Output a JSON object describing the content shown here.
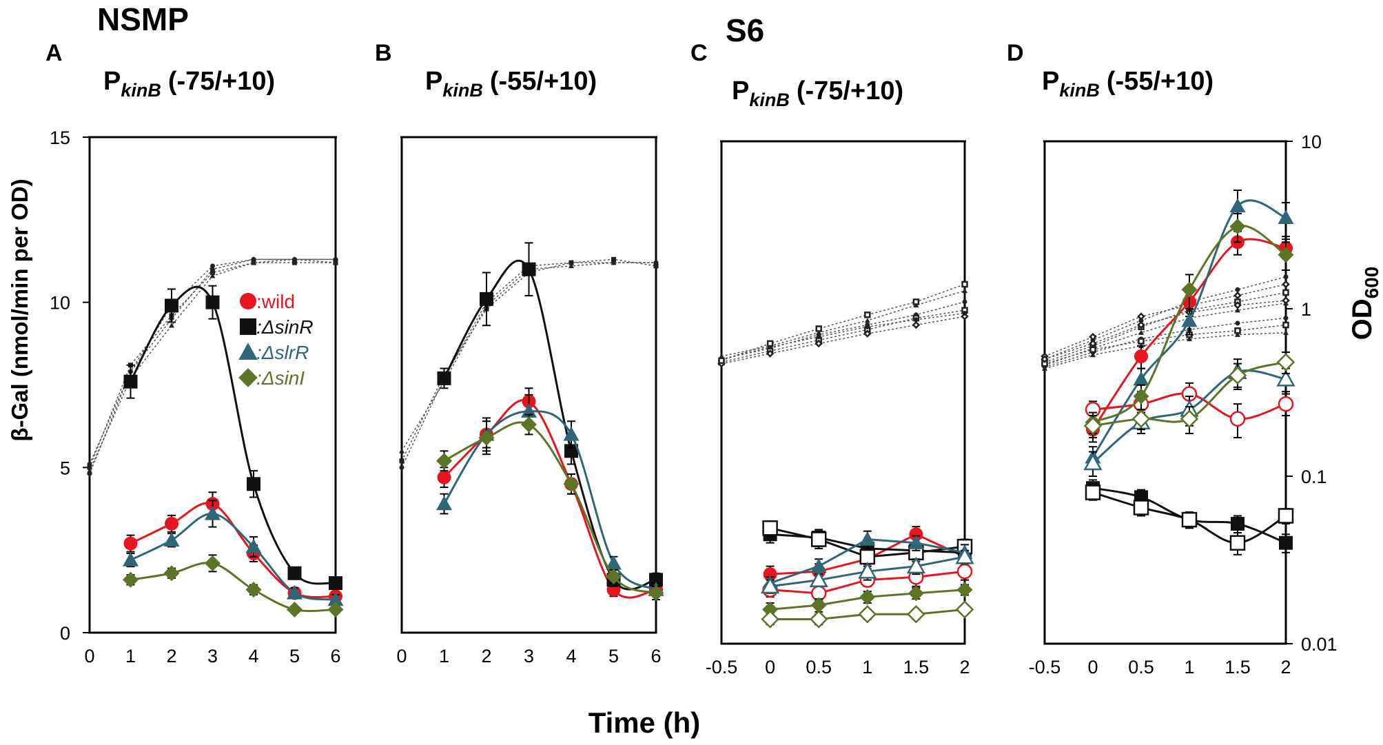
{
  "figure": {
    "group_left": "NSMP",
    "group_right": "S6",
    "y_label_left_prefix": "β-Gal",
    "y_label_left": "(nmol/min per OD)",
    "y_label_right_main": "OD",
    "y_label_right_sub": "600",
    "x_label": "Time (h)"
  },
  "colors": {
    "wild": "#e8141e",
    "sinR": "#111111",
    "slrR": "#2e6678",
    "sinI": "#5c7425",
    "od": "#555555"
  },
  "chart_data": [
    {
      "panel": "A",
      "type": "line",
      "group": "NSMP",
      "title_main": "P",
      "title_sub": "kinB",
      "title_rest": "(-75/+10)",
      "x": [
        0,
        1,
        2,
        3,
        4,
        5,
        6
      ],
      "x_tick_labels": [
        "0",
        "1",
        "2",
        "3",
        "4",
        "5",
        "6"
      ],
      "xlim": [
        0,
        6
      ],
      "ylim": [
        0,
        15
      ],
      "y_tick_labels": [
        "0",
        "5",
        "10",
        "15"
      ],
      "legend": [
        {
          "marker": "circle",
          "label": ":wild",
          "series": "wild"
        },
        {
          "marker": "square",
          "label": ":ΔsinR",
          "series": "sinR"
        },
        {
          "marker": "triangle",
          "label": ":ΔslrR",
          "series": "slrR"
        },
        {
          "marker": "diamond",
          "label": ":ΔsinI",
          "series": "sinI"
        }
      ],
      "series": [
        {
          "name": "wild",
          "marker": "circle",
          "filled": true,
          "values": [
            null,
            2.7,
            3.3,
            3.9,
            2.4,
            1.2,
            1.1
          ],
          "err": [
            0,
            0.25,
            0.25,
            0.35,
            0.25,
            0.15,
            0.15
          ]
        },
        {
          "name": "ΔsinR",
          "marker": "square",
          "filled": true,
          "values": [
            null,
            7.6,
            9.9,
            10.0,
            4.5,
            1.8,
            1.5
          ],
          "err": [
            0,
            0.5,
            0.5,
            0.5,
            0.4,
            0.15,
            0.15
          ]
        },
        {
          "name": "ΔslrR",
          "marker": "triangle",
          "filled": true,
          "values": [
            null,
            2.2,
            2.8,
            3.6,
            2.6,
            1.2,
            1.0
          ],
          "err": [
            0,
            0.2,
            0.2,
            0.4,
            0.3,
            0.15,
            0.15
          ]
        },
        {
          "name": "ΔsinI",
          "marker": "diamond",
          "filled": true,
          "values": [
            null,
            1.6,
            1.8,
            2.1,
            1.3,
            0.7,
            0.7
          ],
          "err": [
            0,
            0.15,
            0.15,
            0.25,
            0.15,
            0.1,
            0.1
          ]
        }
      ],
      "od_curves": [
        [
          5.1,
          7.9,
          9.9,
          11.1,
          11.3,
          11.3,
          11.3
        ],
        [
          5.0,
          8.1,
          9.6,
          10.9,
          11.2,
          11.2,
          11.2
        ],
        [
          4.9,
          7.7,
          9.3,
          10.8,
          11.2,
          11.3,
          11.2
        ],
        [
          4.8,
          7.9,
          9.5,
          11.0,
          11.3,
          11.3,
          11.3
        ]
      ]
    },
    {
      "panel": "B",
      "type": "line",
      "group": "NSMP",
      "title_main": "P",
      "title_sub": "kinB",
      "title_rest": "(-55/+10)",
      "x": [
        0,
        1,
        2,
        3,
        4,
        5,
        6
      ],
      "x_tick_labels": [
        "0",
        "1",
        "2",
        "3",
        "4",
        "5",
        "6"
      ],
      "xlim": [
        0,
        6
      ],
      "ylim": [
        0,
        15
      ],
      "series": [
        {
          "name": "wild",
          "marker": "circle",
          "filled": true,
          "values": [
            null,
            4.7,
            6.0,
            7.0,
            4.5,
            1.3,
            1.3
          ],
          "err": [
            0,
            0.3,
            0.4,
            0.4,
            0.3,
            0.2,
            0.2
          ]
        },
        {
          "name": "ΔsinR",
          "marker": "square",
          "filled": true,
          "values": [
            null,
            7.7,
            10.1,
            11.0,
            5.5,
            1.6,
            1.6
          ],
          "err": [
            0,
            0.3,
            0.8,
            0.8,
            0.4,
            0.2,
            0.2
          ]
        },
        {
          "name": "ΔslrR",
          "marker": "triangle",
          "filled": true,
          "values": [
            null,
            3.9,
            6.0,
            6.7,
            6.0,
            2.1,
            1.3
          ],
          "err": [
            0,
            0.3,
            0.5,
            0.5,
            0.4,
            0.2,
            0.2
          ]
        },
        {
          "name": "ΔsinI",
          "marker": "diamond",
          "filled": true,
          "values": [
            null,
            5.2,
            5.9,
            6.3,
            4.5,
            1.7,
            1.2
          ],
          "err": [
            0,
            0.3,
            0.5,
            0.3,
            0.3,
            0.2,
            0.2
          ]
        }
      ],
      "od_curves": [
        [
          5.0,
          7.7,
          10.0,
          11.1,
          11.2,
          11.2,
          11.2
        ],
        [
          5.2,
          7.8,
          9.8,
          10.9,
          11.2,
          11.3,
          11.1
        ],
        [
          5.5,
          7.6,
          9.9,
          11.0,
          11.1,
          11.2,
          11.2
        ]
      ]
    },
    {
      "panel": "C",
      "type": "line",
      "group": "S6",
      "title_main": "P",
      "title_sub": "kinB",
      "title_rest": "(-75/+10)",
      "x": [
        -0.5,
        0,
        0.5,
        1,
        1.5,
        2
      ],
      "x_tick_labels": [
        "-0.5",
        "0",
        "0.5",
        "1",
        "1.5",
        "2"
      ],
      "xlim": [
        -0.5,
        2
      ],
      "ylim_log": [
        0.01,
        10
      ],
      "series": [
        {
          "name": "wild",
          "marker": "circle",
          "filled": true,
          "values": [
            null,
            0.026,
            0.027,
            0.032,
            0.045,
            0.033
          ],
          "err": [
            0,
            0.003,
            0.003,
            0.004,
            0.005,
            0.003
          ]
        },
        {
          "name": "wild (open)",
          "marker": "circle",
          "filled": false,
          "values": [
            null,
            0.021,
            0.02,
            0.024,
            0.025,
            0.027
          ],
          "err": [
            0,
            0.002,
            0.002,
            0.002,
            0.003,
            0.003
          ]
        },
        {
          "name": "ΔsinR",
          "marker": "square",
          "filled": true,
          "values": [
            null,
            0.045,
            0.043,
            0.037,
            0.036,
            0.035
          ],
          "err": [
            0,
            0.005,
            0.005,
            0.004,
            0.004,
            0.004
          ]
        },
        {
          "name": "ΔsinR (open)",
          "marker": "square",
          "filled": false,
          "values": [
            null,
            0.049,
            0.042,
            0.033,
            0.035,
            0.038
          ],
          "err": [
            0,
            0.005,
            0.005,
            0.004,
            0.004,
            0.004
          ]
        },
        {
          "name": "ΔslrR",
          "marker": "triangle",
          "filled": true,
          "values": [
            null,
            0.023,
            0.029,
            0.042,
            0.04,
            0.035
          ],
          "err": [
            0,
            0.002,
            0.003,
            0.005,
            0.004,
            0.004
          ]
        },
        {
          "name": "ΔslrR (open)",
          "marker": "triangle",
          "filled": false,
          "values": [
            null,
            0.022,
            0.024,
            0.027,
            0.029,
            0.033
          ],
          "err": [
            0,
            0.002,
            0.002,
            0.003,
            0.003,
            0.003
          ]
        },
        {
          "name": "ΔsinI",
          "marker": "diamond",
          "filled": true,
          "values": [
            null,
            0.016,
            0.017,
            0.019,
            0.02,
            0.021
          ],
          "err": [
            0,
            0.0015,
            0.0015,
            0.0015,
            0.0015,
            0.0015
          ]
        },
        {
          "name": "ΔsinI (open)",
          "marker": "diamond",
          "filled": false,
          "values": [
            null,
            0.014,
            0.014,
            0.015,
            0.015,
            0.016
          ],
          "err": [
            0,
            0.001,
            0.001,
            0.001,
            0.001,
            0.001
          ]
        }
      ],
      "od_curves": [
        [
          0.5,
          0.58,
          0.7,
          0.8,
          0.92,
          1.1
        ],
        [
          0.48,
          0.56,
          0.65,
          0.75,
          0.88,
          0.98
        ],
        [
          0.52,
          0.6,
          0.72,
          0.85,
          1.05,
          1.28
        ],
        [
          0.47,
          0.54,
          0.62,
          0.71,
          0.8,
          0.9
        ],
        [
          0.5,
          0.59,
          0.68,
          0.78,
          0.86,
          0.94
        ],
        [
          0.49,
          0.62,
          0.76,
          0.92,
          1.1,
          1.4
        ]
      ]
    },
    {
      "panel": "D",
      "type": "line",
      "group": "S6",
      "title_main": "P",
      "title_sub": "kinB",
      "title_rest": "(-55/+10)",
      "x": [
        -0.5,
        0,
        0.5,
        1,
        1.5,
        2
      ],
      "x_tick_labels": [
        "-0.5",
        "0",
        "0.5",
        "1",
        "1.5",
        "2"
      ],
      "xlim": [
        -0.5,
        2
      ],
      "ylim_log": [
        0.01,
        10
      ],
      "y_tick_labels_right": [
        "0.01",
        "0.1",
        "1",
        "10"
      ],
      "series": [
        {
          "name": "wild",
          "marker": "circle",
          "filled": true,
          "values": [
            null,
            0.19,
            0.52,
            1.1,
            2.5,
            2.3
          ],
          "err": [
            0,
            0.03,
            0.08,
            0.2,
            0.4,
            0.3
          ]
        },
        {
          "name": "wild (open)",
          "marker": "circle",
          "filled": false,
          "values": [
            null,
            0.25,
            0.27,
            0.31,
            0.22,
            0.27
          ],
          "err": [
            0,
            0.03,
            0.04,
            0.05,
            0.05,
            0.04
          ]
        },
        {
          "name": "ΔsinR",
          "marker": "square",
          "filled": true,
          "values": [
            null,
            0.085,
            0.075,
            0.055,
            0.052,
            0.04
          ],
          "err": [
            0,
            0.01,
            0.008,
            0.006,
            0.006,
            0.005
          ]
        },
        {
          "name": "ΔsinR (open)",
          "marker": "square",
          "filled": false,
          "values": [
            null,
            0.08,
            0.065,
            0.055,
            0.04,
            0.058
          ],
          "err": [
            0,
            0.008,
            0.007,
            0.006,
            0.006,
            0.006
          ]
        },
        {
          "name": "ΔslrR",
          "marker": "triangle",
          "filled": true,
          "values": [
            null,
            0.13,
            0.38,
            0.85,
            4.1,
            3.5
          ],
          "err": [
            0,
            0.02,
            0.06,
            0.15,
            1.0,
            0.8
          ]
        },
        {
          "name": "ΔslrR (open)",
          "marker": "triangle",
          "filled": false,
          "values": [
            null,
            0.12,
            0.21,
            0.25,
            0.42,
            0.38
          ],
          "err": [
            0,
            0.02,
            0.03,
            0.05,
            0.08,
            0.06
          ]
        },
        {
          "name": "ΔsinI",
          "marker": "diamond",
          "filled": true,
          "values": [
            null,
            0.21,
            0.3,
            1.3,
            3.1,
            2.1
          ],
          "err": [
            0,
            0.03,
            0.05,
            0.3,
            0.6,
            0.4
          ]
        },
        {
          "name": "ΔsinI (open)",
          "marker": "diamond",
          "filled": false,
          "values": [
            null,
            0.2,
            0.22,
            0.22,
            0.4,
            0.48
          ],
          "err": [
            0,
            0.03,
            0.03,
            0.04,
            0.07,
            0.07
          ]
        }
      ],
      "od_curves": [
        [
          0.5,
          0.65,
          0.85,
          1.1,
          1.3,
          1.55
        ],
        [
          0.48,
          0.6,
          0.78,
          0.98,
          1.1,
          1.25
        ],
        [
          0.46,
          0.58,
          0.72,
          0.88,
          0.98,
          1.08
        ],
        [
          0.52,
          0.68,
          0.9,
          1.05,
          1.2,
          1.4
        ],
        [
          0.45,
          0.55,
          0.66,
          0.75,
          0.82,
          0.88
        ],
        [
          0.47,
          0.57,
          0.64,
          0.7,
          0.74,
          0.8
        ],
        [
          0.44,
          0.53,
          0.6,
          0.66,
          0.7,
          0.72
        ],
        [
          0.5,
          0.62,
          0.8,
          0.95,
          1.05,
          1.12
        ]
      ]
    }
  ]
}
